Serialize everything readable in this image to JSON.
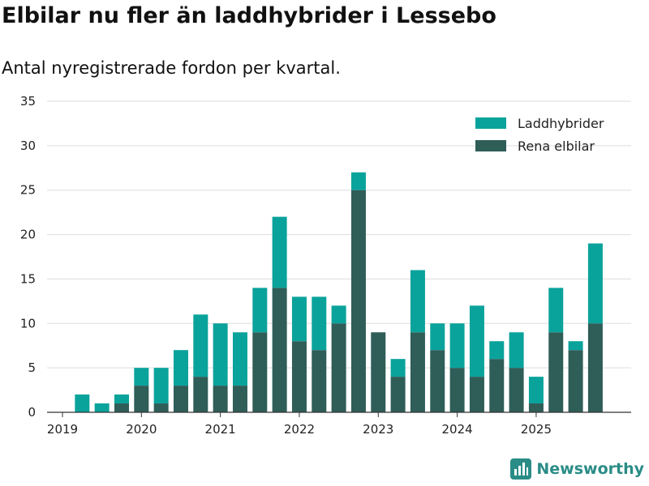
{
  "chart_data": {
    "type": "bar",
    "stacked": true,
    "title": "Elbilar nu fler än laddhybrider i Lessebo",
    "subtitle": "Antal nyregistrerade fordon per kvartal.",
    "xlabel": "",
    "ylabel": "",
    "ylim": [
      0,
      35
    ],
    "yticks": [
      0,
      5,
      10,
      15,
      20,
      25,
      30,
      35
    ],
    "xtick_labels": [
      "2019",
      "2020",
      "2021",
      "2022",
      "2023",
      "2024",
      "2025"
    ],
    "categories": [
      "2019 Q1",
      "2019 Q2",
      "2019 Q3",
      "2019 Q4",
      "2020 Q1",
      "2020 Q2",
      "2020 Q3",
      "2020 Q4",
      "2021 Q1",
      "2021 Q2",
      "2021 Q3",
      "2021 Q4",
      "2022 Q1",
      "2022 Q2",
      "2022 Q3",
      "2022 Q4",
      "2023 Q1",
      "2023 Q2",
      "2023 Q3",
      "2023 Q4",
      "2024 Q1",
      "2024 Q2",
      "2024 Q3",
      "2024 Q4",
      "2025 Q1",
      "2025 Q2",
      "2025 Q3",
      "2025 Q4"
    ],
    "legend_position": "top-right",
    "series": [
      {
        "name": "Rena elbilar",
        "color": "#2f5d58",
        "values": [
          0,
          0,
          0,
          1,
          3,
          1,
          3,
          4,
          3,
          3,
          9,
          14,
          8,
          7,
          10,
          25,
          9,
          4,
          9,
          7,
          5,
          4,
          6,
          5,
          1,
          9,
          7,
          10
        ]
      },
      {
        "name": "Laddhybrider",
        "color": "#0aa39b",
        "values": [
          0,
          2,
          1,
          1,
          2,
          4,
          4,
          7,
          7,
          6,
          5,
          8,
          5,
          6,
          2,
          2,
          0,
          2,
          7,
          3,
          5,
          8,
          2,
          4,
          3,
          5,
          1,
          9
        ]
      }
    ]
  },
  "brand": {
    "name": "Newsworthy",
    "icon": "newsworthy-logo-icon",
    "color": "#2a8c86"
  }
}
